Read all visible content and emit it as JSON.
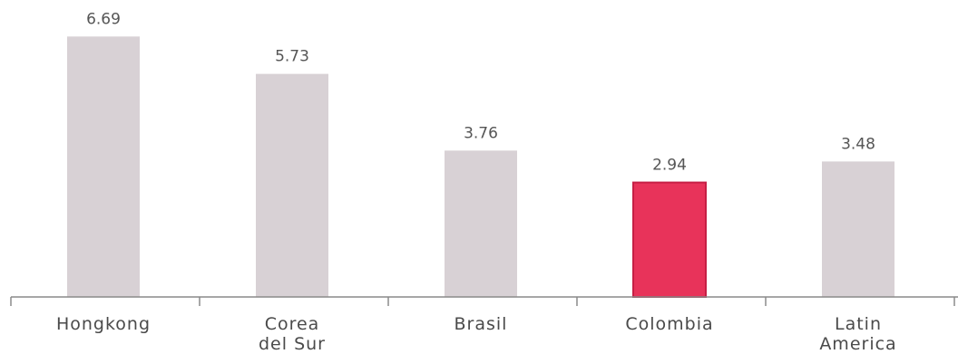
{
  "chart_data": {
    "type": "bar",
    "title": "",
    "xlabel": "",
    "ylabel": "",
    "categories": [
      [
        "Hongkong"
      ],
      [
        "Corea",
        "del Sur"
      ],
      [
        "Brasil"
      ],
      [
        "Colombia"
      ],
      [
        "Latin",
        "America"
      ]
    ],
    "values": [
      6.69,
      5.73,
      3.76,
      2.94,
      3.48
    ],
    "value_labels": [
      "6.69",
      "5.73",
      "3.76",
      "2.94",
      "3.48"
    ],
    "bar_colors": [
      "#d8d1d5",
      "#d8d1d5",
      "#d8d1d5",
      "#e8335a",
      "#d8d1d5"
    ],
    "highlight_index": 3,
    "ylim": [
      0,
      7.5
    ],
    "grid": false,
    "legend": "none"
  },
  "colors": {
    "bar_default": "#d8d1d5",
    "bar_highlight": "#e8335a",
    "highlight_border": "#c61f45",
    "axis": "#8a8a8a",
    "text": "#4a4a4a"
  }
}
